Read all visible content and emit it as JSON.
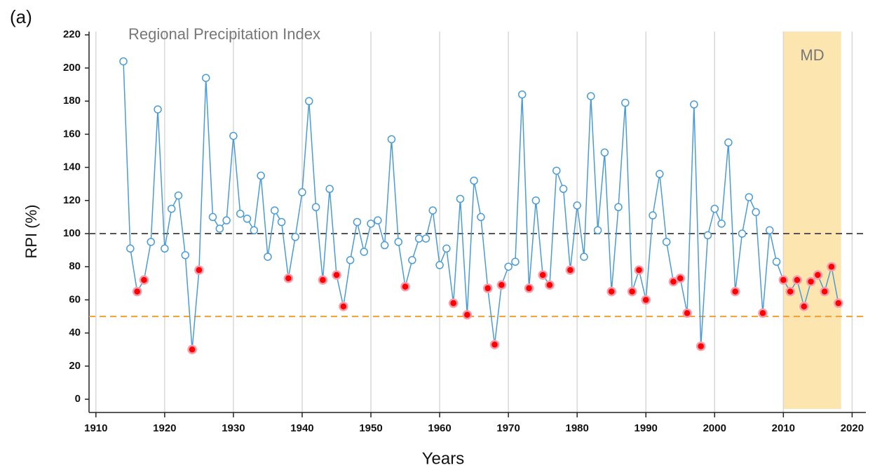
{
  "chart_data": {
    "type": "line",
    "panel_label": "(a)",
    "title": "Regional Precipitation Index",
    "xlabel": "Years",
    "ylabel": "RPI (%)",
    "x": [
      1914,
      1915,
      1916,
      1917,
      1918,
      1919,
      1920,
      1921,
      1922,
      1923,
      1924,
      1925,
      1926,
      1927,
      1928,
      1929,
      1930,
      1931,
      1932,
      1933,
      1934,
      1935,
      1936,
      1937,
      1938,
      1939,
      1940,
      1941,
      1942,
      1943,
      1944,
      1945,
      1946,
      1947,
      1948,
      1949,
      1950,
      1951,
      1952,
      1953,
      1954,
      1955,
      1956,
      1957,
      1958,
      1959,
      1960,
      1961,
      1962,
      1963,
      1964,
      1965,
      1966,
      1967,
      1968,
      1969,
      1970,
      1971,
      1972,
      1973,
      1974,
      1975,
      1976,
      1977,
      1978,
      1979,
      1980,
      1981,
      1982,
      1983,
      1984,
      1985,
      1986,
      1987,
      1988,
      1989,
      1990,
      1991,
      1992,
      1993,
      1994,
      1995,
      1996,
      1997,
      1998,
      1999,
      2000,
      2001,
      2002,
      2003,
      2004,
      2005,
      2006,
      2007,
      2008,
      2009,
      2010,
      2011,
      2012,
      2013,
      2014,
      2015,
      2016,
      2017,
      2018
    ],
    "series": [
      {
        "name": "RPI",
        "color": "#4a9bd6",
        "values": [
          204,
          91,
          65,
          72,
          95,
          175,
          91,
          115,
          123,
          87,
          30,
          78,
          194,
          110,
          103,
          108,
          159,
          112,
          109,
          102,
          135,
          86,
          114,
          107,
          73,
          98,
          125,
          180,
          116,
          72,
          127,
          75,
          56,
          84,
          107,
          89,
          106,
          108,
          93,
          157,
          95,
          68,
          84,
          97,
          97,
          114,
          81,
          91,
          58,
          121,
          51,
          132,
          110,
          67,
          33,
          69,
          80,
          83,
          184,
          67,
          120,
          75,
          69,
          138,
          127,
          78,
          117,
          86,
          183,
          102,
          149,
          65,
          116,
          179,
          65,
          78,
          60,
          111,
          136,
          95,
          71,
          73,
          52,
          178,
          32,
          99,
          115,
          106,
          155,
          65,
          100,
          122,
          113,
          52,
          102,
          83,
          72,
          65,
          72,
          56,
          71,
          75,
          65,
          80,
          58
        ],
        "marker_colors": [
          "#4a9bd6",
          "#4a9bd6",
          "red",
          "red",
          "#4a9bd6",
          "#4a9bd6",
          "#4a9bd6",
          "#4a9bd6",
          "#4a9bd6",
          "#4a9bd6",
          "red",
          "red",
          "#4a9bd6",
          "#4a9bd6",
          "#4a9bd6",
          "#4a9bd6",
          "#4a9bd6",
          "#4a9bd6",
          "#4a9bd6",
          "#4a9bd6",
          "#4a9bd6",
          "#4a9bd6",
          "#4a9bd6",
          "#4a9bd6",
          "red",
          "#4a9bd6",
          "#4a9bd6",
          "#4a9bd6",
          "#4a9bd6",
          "red",
          "#4a9bd6",
          "red",
          "red",
          "#4a9bd6",
          "#4a9bd6",
          "#4a9bd6",
          "#4a9bd6",
          "#4a9bd6",
          "#4a9bd6",
          "#4a9bd6",
          "#4a9bd6",
          "red",
          "#4a9bd6",
          "#4a9bd6",
          "#4a9bd6",
          "#4a9bd6",
          "#4a9bd6",
          "#4a9bd6",
          "red",
          "#4a9bd6",
          "red",
          "#4a9bd6",
          "#4a9bd6",
          "red",
          "red",
          "red",
          "#4a9bd6",
          "#4a9bd6",
          "#4a9bd6",
          "red",
          "#4a9bd6",
          "red",
          "red",
          "#4a9bd6",
          "#4a9bd6",
          "red",
          "#4a9bd6",
          "#4a9bd6",
          "#4a9bd6",
          "#4a9bd6",
          "#4a9bd6",
          "red",
          "#4a9bd6",
          "#4a9bd6",
          "red",
          "red",
          "red",
          "#4a9bd6",
          "#4a9bd6",
          "#4a9bd6",
          "red",
          "red",
          "red",
          "#4a9bd6",
          "red",
          "#4a9bd6",
          "#4a9bd6",
          "#4a9bd6",
          "#4a9bd6",
          "red",
          "#4a9bd6",
          "#4a9bd6",
          "#4a9bd6",
          "red",
          "#4a9bd6",
          "#4a9bd6",
          "red",
          "red",
          "red",
          "red",
          "red",
          "red",
          "red",
          "red",
          "red"
        ]
      }
    ],
    "reference_lines": [
      {
        "value": 100,
        "color": "#555555"
      },
      {
        "value": 50,
        "color": "#f0a030"
      }
    ],
    "shaded_region": {
      "label": "MD",
      "xlim": [
        2010,
        2018.4
      ],
      "color": "#fde5b0"
    },
    "xlim": [
      1909,
      2022
    ],
    "xticks": [
      1910,
      1920,
      1930,
      1940,
      1950,
      1960,
      1970,
      1980,
      1990,
      2000,
      2010,
      2020
    ],
    "ylim": [
      -8,
      222
    ],
    "yticks": [
      0,
      20,
      40,
      60,
      80,
      100,
      120,
      140,
      160,
      180,
      200,
      220
    ],
    "grid": "x"
  }
}
